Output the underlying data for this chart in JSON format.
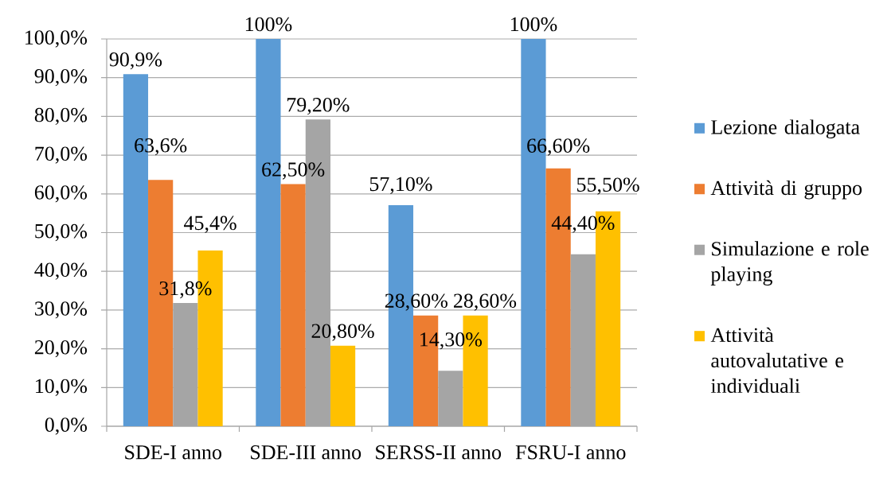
{
  "chart_data": {
    "type": "bar",
    "categories": [
      "SDE-I anno",
      "SDE-III anno",
      "SERSS-II anno",
      "FSRU-I anno"
    ],
    "series": [
      {
        "name": "Lezione dialogata",
        "color": "#5b9bd5",
        "values": [
          90.9,
          100,
          57.1,
          100
        ],
        "value_labels": [
          "90,9%",
          "100%",
          "57,10%",
          "100%"
        ]
      },
      {
        "name": "Attività di gruppo",
        "color": "#ed7d31",
        "values": [
          63.6,
          62.5,
          28.6,
          66.6
        ],
        "value_labels": [
          "63,6%",
          "62,50%",
          "28,60%",
          "66,60%"
        ]
      },
      {
        "name": "Simulazione e role playing",
        "color": "#a5a5a5",
        "values": [
          31.8,
          79.2,
          14.3,
          44.4
        ],
        "value_labels": [
          "31,8%",
          "79,20%",
          "14,30%",
          "44,40%"
        ]
      },
      {
        "name": "Attività autovalutative e individuali",
        "color": "#ffc000",
        "values": [
          45.4,
          20.8,
          28.6,
          55.5
        ],
        "value_labels": [
          "45,4%",
          "20,80%",
          "28,60%",
          "55,50%"
        ]
      }
    ],
    "ylim": [
      0,
      100
    ],
    "yticks": [
      {
        "value": 0,
        "label": "0,0%"
      },
      {
        "value": 10,
        "label": "10,0%"
      },
      {
        "value": 20,
        "label": "20,0%"
      },
      {
        "value": 30,
        "label": "30,0%"
      },
      {
        "value": 40,
        "label": "40,0%"
      },
      {
        "value": 50,
        "label": "50,0%"
      },
      {
        "value": 60,
        "label": "60,0%"
      },
      {
        "value": 70,
        "label": "70,0%"
      },
      {
        "value": 80,
        "label": "80,0%"
      },
      {
        "value": 90,
        "label": "90,0%"
      },
      {
        "value": 100,
        "label": "100,0%"
      }
    ],
    "grid": "y",
    "legend": "right"
  }
}
